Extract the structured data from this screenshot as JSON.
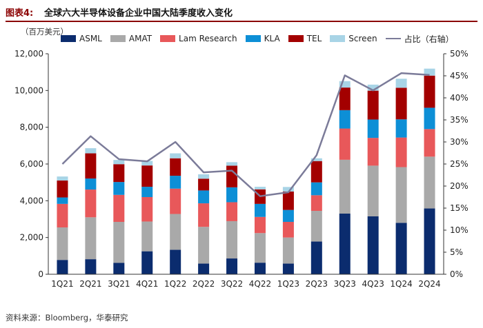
{
  "header": {
    "figure_label": "图表4:",
    "title": "全球六大半导体设备企业中国大陆季度收入变化"
  },
  "unit_label": "（百万美元）",
  "source": "资料来源：Bloomberg，华泰研究",
  "chart_data": {
    "type": "bar",
    "stacked": true,
    "categories": [
      "1Q21",
      "2Q21",
      "3Q21",
      "4Q21",
      "1Q22",
      "2Q22",
      "3Q22",
      "4Q22",
      "1Q23",
      "2Q23",
      "3Q23",
      "4Q23",
      "1Q24",
      "2Q24"
    ],
    "series": [
      {
        "name": "ASML",
        "color": "#0b2c6e",
        "values": [
          780,
          820,
          620,
          1250,
          1330,
          580,
          860,
          630,
          580,
          1780,
          3300,
          3150,
          2800,
          3580
        ]
      },
      {
        "name": "AMAT",
        "color": "#a9a9a9",
        "values": [
          1770,
          2280,
          2230,
          1620,
          1950,
          2000,
          2030,
          1610,
          1420,
          1670,
          2930,
          2760,
          3030,
          2820
        ]
      },
      {
        "name": "Lam Research",
        "color": "#e8585a",
        "values": [
          1280,
          1510,
          1470,
          1330,
          1380,
          1280,
          1030,
          880,
          850,
          850,
          1700,
          1510,
          1610,
          1500
        ]
      },
      {
        "name": "KLA",
        "color": "#0d8fd6",
        "values": [
          350,
          600,
          700,
          560,
          700,
          700,
          810,
          710,
          650,
          700,
          1000,
          1000,
          990,
          1160
        ]
      },
      {
        "name": "TEL",
        "color": "#a30000",
        "values": [
          920,
          1370,
          970,
          1160,
          950,
          640,
          1180,
          790,
          1000,
          1160,
          1230,
          1570,
          1720,
          1750
        ]
      },
      {
        "name": "Screen",
        "color": "#a8d4e6",
        "values": [
          220,
          280,
          230,
          250,
          270,
          240,
          190,
          140,
          250,
          150,
          350,
          330,
          490,
          380
        ]
      }
    ],
    "line": {
      "name": "占比（右轴）",
      "color": "#7b7b99",
      "values": [
        25.0,
        31.3,
        26.1,
        25.6,
        30.0,
        23.1,
        23.5,
        17.7,
        18.6,
        27.0,
        45.1,
        41.7,
        45.6,
        45.2
      ]
    },
    "y_left": {
      "min": 0,
      "max": 12000,
      "ticks": [
        "0",
        "2,000",
        "4,000",
        "6,000",
        "8,000",
        "10,000",
        "12,000"
      ]
    },
    "y_right": {
      "min": 0,
      "max": 50,
      "ticks": [
        "0%",
        "5%",
        "10%",
        "15%",
        "20%",
        "25%",
        "30%",
        "35%",
        "40%",
        "45%",
        "50%"
      ]
    }
  }
}
